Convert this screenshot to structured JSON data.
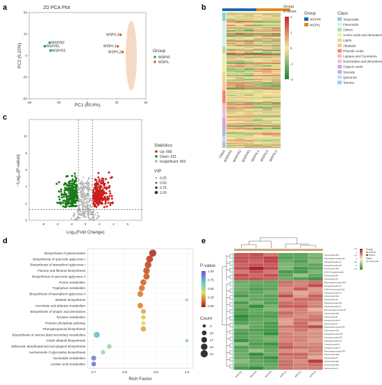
{
  "chart_data": [
    {
      "panel": "a",
      "type": "scatter",
      "title": "2D PCA Plot",
      "xlabel": "PC1 (80.8%)",
      "ylabel": "PC2 (5.22%)",
      "xlim": [
        -60,
        60
      ],
      "ylim": [
        -60,
        60
      ],
      "xticks": [
        "-60",
        "-30",
        "0",
        "30",
        "60"
      ],
      "yticks": [
        "-60",
        "-30",
        "0",
        "30",
        "60"
      ],
      "legend_title": "Group",
      "legend_position": "right",
      "series": [
        {
          "name": "WSPrR",
          "color": "#1a9e77",
          "points": [
            {
              "label": "WSPrR2",
              "x": -39,
              "y": 18
            },
            {
              "label": "WSPrR1",
              "x": -44,
              "y": 13
            },
            {
              "label": "WSPrR3",
              "x": -38,
              "y": 7
            }
          ]
        },
        {
          "name": "WSPrL",
          "color": "#e05a1c",
          "points": [
            {
              "label": "WSPrL3",
              "x": 34,
              "y": 29
            },
            {
              "label": "WSPrL1",
              "x": 31,
              "y": 13
            },
            {
              "label": "WSPrL2",
              "x": 36,
              "y": 5
            }
          ]
        }
      ]
    },
    {
      "panel": "b",
      "type": "heatmap",
      "columns": [
        "Class",
        "WSPrR1",
        "WSPrR2",
        "WSPrR3",
        "WSPrL1",
        "WSPrL2",
        "WSPrL3"
      ],
      "color_scale": {
        "title": "Z-score",
        "ticks": [
          "2",
          "1",
          "0",
          "-1",
          "-2"
        ],
        "low": "#1a7f3c",
        "mid": "#f5e8a0",
        "high": "#c0262d"
      },
      "group_legend": {
        "title": "Group",
        "items": [
          {
            "name": "WSPrR",
            "color": "#2166ac"
          },
          {
            "name": "WSPrL",
            "color": "#e08a1e"
          }
        ]
      },
      "class_legend": {
        "title": "Class",
        "items": [
          {
            "name": "Terpenoids",
            "color": "#8fd3c8"
          },
          {
            "name": "Flavonoids",
            "color": "#d8edf2"
          },
          {
            "name": "Others",
            "color": "#b4dcb0"
          },
          {
            "name": "Amino acids and derivatives",
            "color": "#e6f0a4"
          },
          {
            "name": "Lipids",
            "color": "#f4d58d"
          },
          {
            "name": "Alkaloids",
            "color": "#f7c6a0"
          },
          {
            "name": "Phenolic acids",
            "color": "#f08a7a"
          },
          {
            "name": "Lignans and Coumarins",
            "color": "#f4b8c8"
          },
          {
            "name": "Nucleotides and derivatives",
            "color": "#f0c0dc"
          },
          {
            "name": "Organic acids",
            "color": "#d6a6d6"
          },
          {
            "name": "Steroids",
            "color": "#b9b3e6"
          },
          {
            "name": "Quinones",
            "color": "#c7d9f0"
          },
          {
            "name": "Tannins",
            "color": "#a9c6e6"
          }
        ]
      }
    },
    {
      "panel": "c",
      "type": "scatter",
      "title": "",
      "xlabel": "Log₂(Fold Change)",
      "ylabel": "−Log₁₀(P-value)",
      "xlim": [
        -8,
        8
      ],
      "ylim": [
        0,
        12
      ],
      "xticks": [
        "-6",
        "-4",
        "-2",
        "0",
        "2",
        "4",
        "6"
      ],
      "yticks": [
        "0",
        "2",
        "4",
        "6",
        "8",
        "10"
      ],
      "thresholds": {
        "fold_change": [
          -1,
          1
        ],
        "p_value_log": 1.3
      },
      "statistics_title": "Statistics",
      "statistics": [
        {
          "label": "Up: 680",
          "color": "#cc1f1f"
        },
        {
          "label": "Down: 631",
          "color": "#1a7a1a"
        },
        {
          "label": "Insignificant: 862",
          "color": "#aaaaaa"
        }
      ],
      "vip_title": "VIP",
      "vip_values": [
        "0.25",
        "0.50",
        "0.75",
        "1.00"
      ]
    },
    {
      "panel": "d",
      "type": "scatter",
      "title": "",
      "xlabel": "Rich Factor",
      "xlim": [
        0.68,
        1.02
      ],
      "xticks": [
        "0.7",
        "0.8",
        "0.9",
        "1.0"
      ],
      "pvalue_legend": {
        "title": "P-value",
        "ticks": [
          "1.00",
          "0.75",
          "0.50",
          "0.25",
          "0.00"
        ]
      },
      "count_legend": {
        "title": "Count",
        "values": [
          "3",
          "10",
          "17",
          "24",
          "31"
        ]
      },
      "pathways": [
        {
          "name": "Biosynthesis of ginsenosides",
          "rich": 0.89,
          "count": 31,
          "p": 0.05
        },
        {
          "name": "Biosynthesis of quercetin aglycones I",
          "rich": 0.88,
          "count": 28,
          "p": 0.08
        },
        {
          "name": "Biosynthesis of kaempferol aglycones I",
          "rich": 0.875,
          "count": 26,
          "p": 0.1
        },
        {
          "name": "Flavone and flavonol biosynthesis",
          "rich": 0.87,
          "count": 24,
          "p": 0.12
        },
        {
          "name": "Biosynthesis of quercetin aglycones II",
          "rich": 0.87,
          "count": 22,
          "p": 0.14
        },
        {
          "name": "Purine metabolism",
          "rich": 0.86,
          "count": 20,
          "p": 0.16
        },
        {
          "name": "Tryptophan metabolism",
          "rich": 0.855,
          "count": 19,
          "p": 0.18
        },
        {
          "name": "Biosynthesis of kaempferol aglycones II",
          "rich": 0.85,
          "count": 18,
          "p": 0.2
        },
        {
          "name": "Betalain biosynthesis",
          "rich": 1.0,
          "count": 3,
          "p": 0.5
        },
        {
          "name": "Ascorbate and aldarate metabolism",
          "rich": 0.85,
          "count": 16,
          "p": 0.22
        },
        {
          "name": "Biosynthesis of sinapic acid derivatives",
          "rich": 0.86,
          "count": 12,
          "p": 0.3
        },
        {
          "name": "Tyrosine metabolism",
          "rich": 0.86,
          "count": 9,
          "p": 0.35
        },
        {
          "name": "Pentose phosphate pathway",
          "rich": 0.86,
          "count": 8,
          "p": 0.4
        },
        {
          "name": "Phenylpropanoid biosynthesis",
          "rich": 0.86,
          "count": 14,
          "p": 0.28
        },
        {
          "name": "Biosynthesis of various plant secondary metabolites",
          "rich": 0.71,
          "count": 20,
          "p": 0.7
        },
        {
          "name": "Indole alkaloid biosynthesis",
          "rich": 1.0,
          "count": 3,
          "p": 0.6
        },
        {
          "name": "Stilbenoid, diarylheptanoid and gingerol biosynthesis",
          "rich": 0.75,
          "count": 10,
          "p": 0.55
        },
        {
          "name": "Isorhamnetin O-glycosides biosynthesis",
          "rich": 0.73,
          "count": 8,
          "p": 0.55
        },
        {
          "name": "Nucleotide metabolism",
          "rich": 0.7,
          "count": 12,
          "p": 0.85
        },
        {
          "name": "Linoleic acid metabolism",
          "rich": 0.7,
          "count": 10,
          "p": 0.9
        }
      ]
    },
    {
      "panel": "e",
      "type": "heatmap",
      "columns": [
        "WSPrR1",
        "WSPrR2",
        "WSPrR3",
        "WSPrL1",
        "WSPrL2",
        "WSPrL3"
      ],
      "group_legend": {
        "title": "Group",
        "items": [
          {
            "name": "WSPrR",
            "color": "#e58a1e"
          },
          {
            "name": "WSPrL",
            "color": "#6a3d3d"
          }
        ]
      },
      "class_legend": {
        "title": "Class",
        "items": [
          {
            "name": "Terpenoids",
            "color": "#8fd3c8"
          }
        ]
      },
      "color_scale": {
        "ticks": [
          "1.5",
          "1",
          "0.5",
          "0",
          "-0.5",
          "-1",
          "-1.5"
        ]
      },
      "rows": [
        "Ginsenoside Rb1",
        "Pseudoginsenoside F11",
        "Notoginsenoside Fe",
        "Notoginsenoside R4",
        "Ginsenoside Rb3",
        "20(S)-Protopanaxadiol",
        "Ginsenoside Rd",
        "Ginsenoside Ro",
        "Malonyl-ginsenoside Rb1",
        "Notoginsenoside Fa",
        "20(S)-Ginsenoside Rg3",
        "Notoginsenoside R1",
        "Ginsenoside Rg1",
        "Ginsenoside Re",
        "Notoginsenoside R6",
        "Notoginsenoside Fc",
        "20-O-Glc-ginsenoside Rf",
        "Ginsenoside Rg2",
        "Ginsenoside Rf",
        "Notoginsenoside K",
        "Ginsenoside F1",
        "Pseudoginsenoside Rt1",
        "Ginsenoside Rh1",
        "Koryoginsenoside R1",
        "Vina-ginsenoside R4",
        "Notoginsenoside R2",
        "Yesanchinoside E",
        "Notoginsenoside G",
        "Pseudoginsenoside RT5",
        "Ginsenoside Rg6",
        "Ginsenoside F4",
        "Ginsenoside Rk3",
        "Ginsenoside Rh4",
        "Ginsenoside F2"
      ]
    }
  ]
}
